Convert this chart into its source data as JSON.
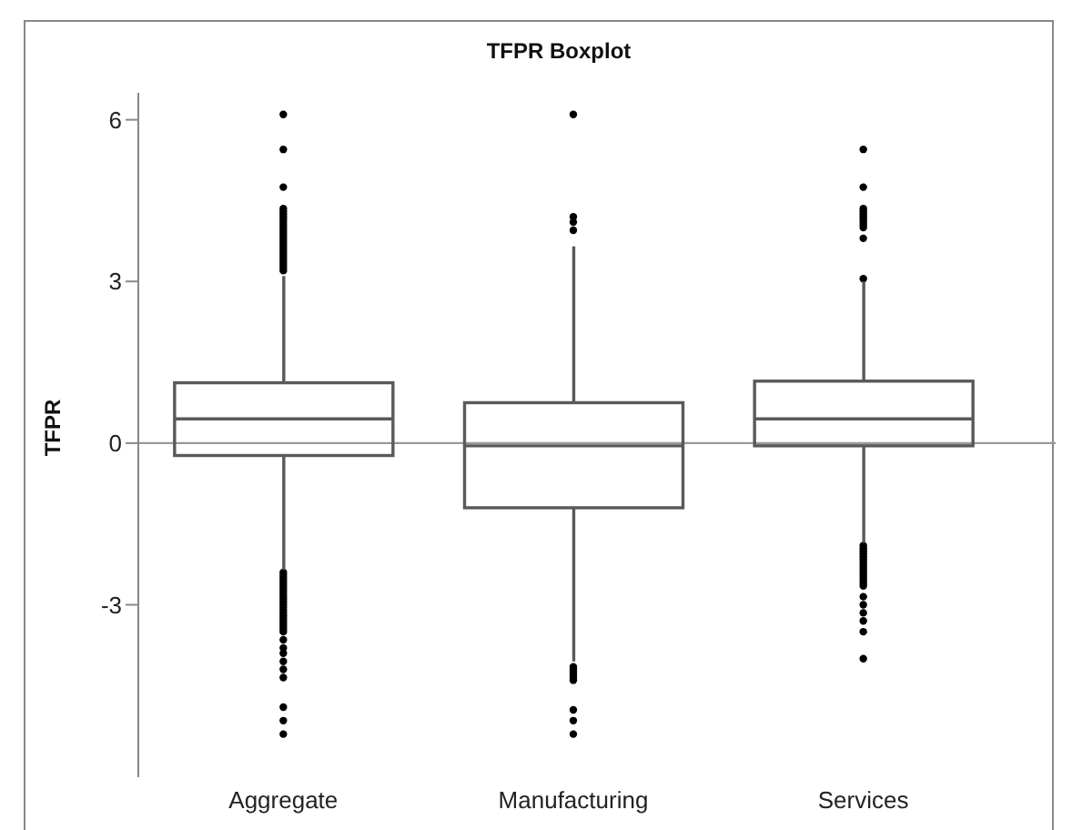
{
  "chart_data": {
    "type": "box",
    "title": "TFPR Boxplot",
    "ylabel": "TFPR",
    "categories": [
      "Aggregate",
      "Manufacturing",
      "Services"
    ],
    "color": "#595959",
    "boxes": [
      {
        "low": -2.35,
        "q1": -0.23,
        "median": 0.45,
        "q3": 1.12,
        "high": 3.1,
        "outliers": [
          6.1,
          5.45,
          4.75,
          4.35,
          4.3,
          4.25,
          4.2,
          4.15,
          4.1,
          4.05,
          4.0,
          3.95,
          3.9,
          3.85,
          3.8,
          3.75,
          3.7,
          3.65,
          3.6,
          3.55,
          3.5,
          3.45,
          3.4,
          3.35,
          3.3,
          3.25,
          3.2,
          -2.4,
          -2.45,
          -2.5,
          -2.55,
          -2.6,
          -2.65,
          -2.7,
          -2.75,
          -2.8,
          -2.85,
          -2.9,
          -2.95,
          -3.0,
          -3.05,
          -3.1,
          -3.15,
          -3.2,
          -3.25,
          -3.3,
          -3.35,
          -3.4,
          -3.45,
          -3.5,
          -3.65,
          -3.8,
          -3.9,
          -4.05,
          -4.2,
          -4.35,
          -4.9,
          -5.15,
          -5.4
        ]
      },
      {
        "low": -4.05,
        "q1": -1.2,
        "median": -0.05,
        "q3": 0.75,
        "high": 3.65,
        "outliers": [
          6.1,
          4.2,
          4.1,
          3.95,
          -4.15,
          -4.2,
          -4.25,
          -4.3,
          -4.35,
          -4.4,
          -4.95,
          -5.15,
          -5.4
        ]
      },
      {
        "low": -1.85,
        "q1": -0.05,
        "median": 0.45,
        "q3": 1.15,
        "high": 3.0,
        "outliers": [
          5.45,
          4.75,
          4.35,
          4.3,
          4.25,
          4.2,
          4.15,
          4.1,
          4.05,
          4.0,
          3.8,
          3.05,
          -1.9,
          -1.95,
          -2.0,
          -2.05,
          -2.1,
          -2.15,
          -2.2,
          -2.25,
          -2.3,
          -2.35,
          -2.4,
          -2.45,
          -2.5,
          -2.55,
          -2.6,
          -2.65,
          -2.85,
          -3.0,
          -3.15,
          -3.3,
          -3.5,
          -4.0
        ]
      }
    ],
    "ylim": [
      -6.2,
      6.5
    ],
    "yticks": [
      -3,
      0,
      3,
      6
    ],
    "ref_lines": [
      {
        "axis": "y",
        "value": 0,
        "color": "#999999"
      }
    ]
  }
}
